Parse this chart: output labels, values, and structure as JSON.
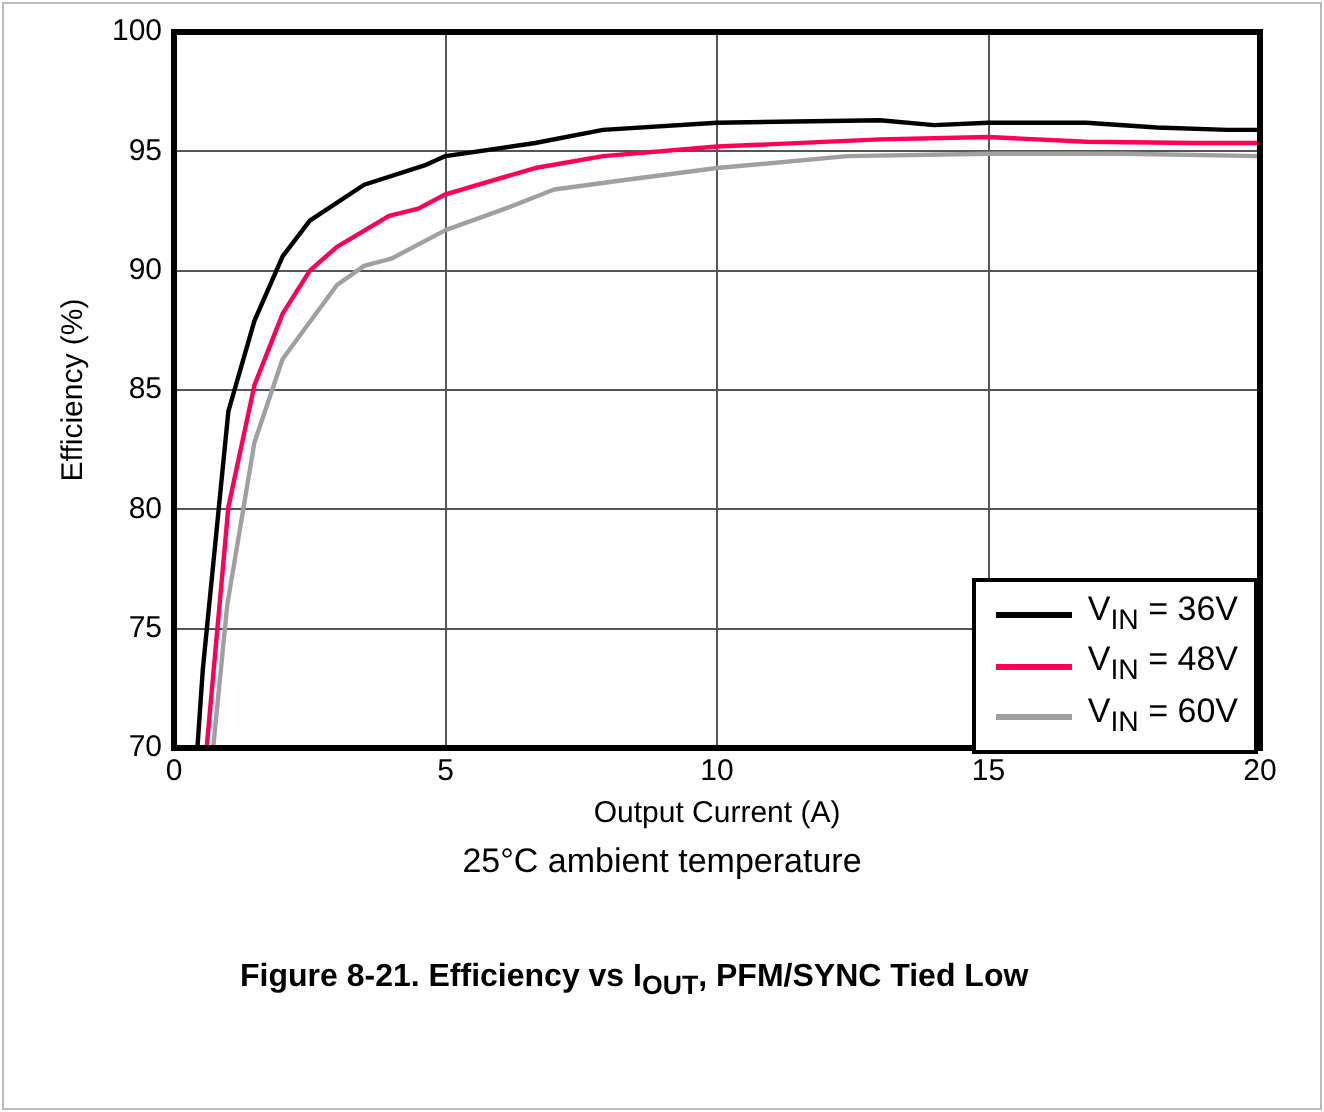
{
  "chart_data": {
    "type": "line",
    "title": "Figure 8-21. Efficiency vs I$_{OUT}$, PFM/SYNC Tied Low",
    "subtitle": "25°C ambient temperature",
    "xlabel": "Output Current (A)",
    "ylabel": "Efficiency (%)",
    "xlim": [
      0,
      20
    ],
    "xticks": [
      0,
      5,
      10,
      15,
      20
    ],
    "ylim": [
      70,
      100
    ],
    "yticks": [
      70,
      75,
      80,
      85,
      90,
      95,
      100
    ],
    "grid": true,
    "legend": "bottom right",
    "marker": "none",
    "line_style": "solid",
    "series": [
      {
        "name": "V$_{IN}$ = 36V",
        "color": "#000000",
        "x": [
          0.43,
          0.53,
          1.0,
          1.48,
          2.0,
          2.5,
          3.5,
          4.6,
          5.0,
          6.65,
          7.9,
          10,
          13,
          14,
          15,
          16.8,
          18.1,
          19.4,
          20
        ],
        "values": [
          70,
          73.3,
          84.1,
          87.9,
          90.6,
          92.1,
          93.6,
          94.4,
          94.8,
          95.35,
          95.9,
          96.2,
          96.3,
          96.1,
          96.2,
          96.2,
          96.0,
          95.9,
          95.9
        ]
      },
      {
        "name": "V$_{IN}$ = 48V",
        "color": "#ff0055",
        "x": [
          0.6,
          1.0,
          1.48,
          2.0,
          2.5,
          3.0,
          3.96,
          4.5,
          5.0,
          6.65,
          7.9,
          10,
          13,
          15,
          16.8,
          18.8,
          20
        ],
        "values": [
          70,
          80.1,
          85.2,
          88.2,
          90,
          91,
          92.3,
          92.6,
          93.2,
          94.3,
          94.8,
          95.2,
          95.5,
          95.6,
          95.4,
          95.35,
          95.35
        ]
      },
      {
        "name": "V$_{IN}$ = 60V",
        "color": "#a0a0a0",
        "x": [
          0.72,
          0.98,
          1.48,
          2.0,
          3.0,
          3.5,
          4.0,
          5.0,
          6.1,
          7.0,
          8.3,
          10,
          12.4,
          15,
          17.5,
          20
        ],
        "values": [
          70,
          76,
          82.8,
          86.3,
          89.4,
          90.2,
          90.5,
          91.7,
          92.6,
          93.4,
          93.8,
          94.3,
          94.8,
          94.9,
          94.9,
          94.8
        ]
      }
    ]
  }
}
